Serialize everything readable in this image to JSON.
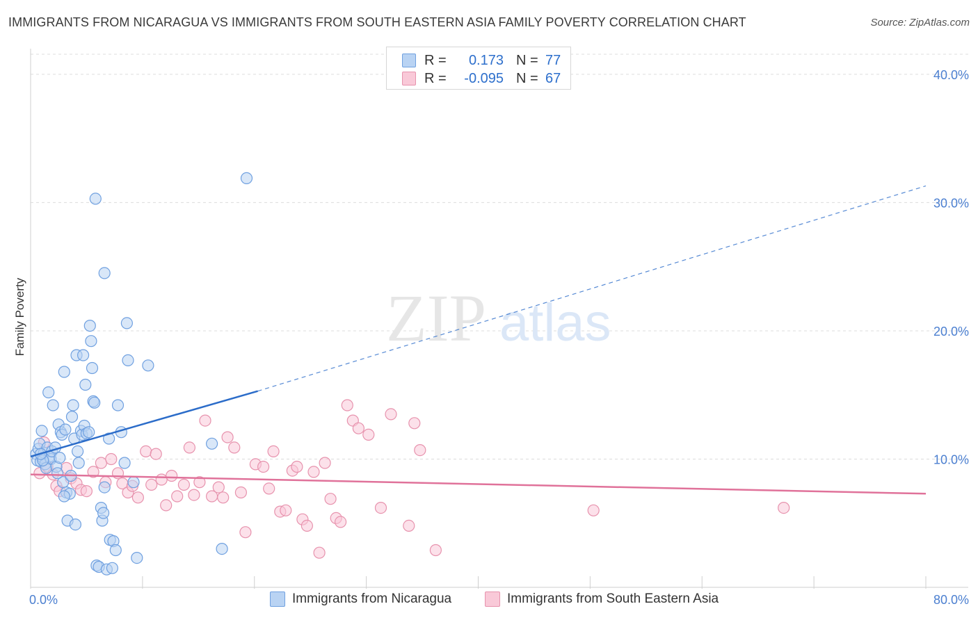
{
  "header": {
    "title": "IMMIGRANTS FROM NICARAGUA VS IMMIGRANTS FROM SOUTH EASTERN ASIA FAMILY POVERTY CORRELATION CHART",
    "source": "Source: ZipAtlas.com"
  },
  "watermark": {
    "zip": "ZIP",
    "atlas": "atlas"
  },
  "colors": {
    "blue_fill": "#b9d3f3",
    "blue_stroke": "#6fa0e0",
    "blue_line": "#2b6cc9",
    "pink_fill": "#f9c9d8",
    "pink_stroke": "#e792ad",
    "pink_line": "#e0729a",
    "grid": "#dcdcdc",
    "tick_text": "#4b7fd0"
  },
  "legend": {
    "r_label": "R =",
    "n_label": "N =",
    "rows": [
      {
        "name": "blue",
        "r": "0.173",
        "n": "77"
      },
      {
        "name": "pink",
        "r": "-0.095",
        "n": "67"
      }
    ]
  },
  "chart_data": {
    "type": "scatter",
    "title": "IMMIGRANTS FROM NICARAGUA VS IMMIGRANTS FROM SOUTH EASTERN ASIA FAMILY POVERTY CORRELATION CHART",
    "xlabel": "",
    "ylabel": "Family Poverty",
    "xlim": [
      0,
      80
    ],
    "ylim": [
      0,
      42
    ],
    "x_tick_labels": [
      "0.0%",
      "80.0%"
    ],
    "y_ticks": [
      10,
      20,
      30,
      40
    ],
    "y_tick_labels": [
      "10.0%",
      "20.0%",
      "30.0%",
      "40.0%"
    ],
    "grid": true,
    "legend_position": "top-center",
    "series": [
      {
        "name": "Immigrants from Nicaragua",
        "color": "#6fa0e0",
        "r": 0.173,
        "n": 77,
        "trend": {
          "x": [
            0,
            20.3
          ],
          "y": [
            10.2,
            15.3
          ],
          "dashed_to": [
            80,
            31.3
          ]
        },
        "points": [
          [
            0.5,
            10.4
          ],
          [
            0.6,
            9.9
          ],
          [
            0.7,
            10.8
          ],
          [
            0.8,
            11.2
          ],
          [
            0.9,
            9.8
          ],
          [
            1.0,
            12.2
          ],
          [
            1.1,
            10.1
          ],
          [
            1.2,
            10.5
          ],
          [
            1.3,
            9.6
          ],
          [
            1.5,
            10.9
          ],
          [
            1.7,
            10.2
          ],
          [
            1.8,
            10.0
          ],
          [
            1.4,
            9.3
          ],
          [
            1.6,
            15.2
          ],
          [
            1.9,
            10.6
          ],
          [
            2.0,
            14.2
          ],
          [
            2.2,
            10.9
          ],
          [
            2.3,
            9.4
          ],
          [
            2.5,
            12.7
          ],
          [
            2.6,
            10.1
          ],
          [
            2.7,
            12.1
          ],
          [
            2.8,
            11.9
          ],
          [
            2.9,
            8.2
          ],
          [
            3.0,
            16.8
          ],
          [
            3.1,
            12.3
          ],
          [
            3.2,
            7.4
          ],
          [
            3.3,
            5.2
          ],
          [
            3.5,
            7.3
          ],
          [
            3.6,
            8.7
          ],
          [
            3.7,
            13.3
          ],
          [
            3.8,
            14.2
          ],
          [
            3.9,
            11.6
          ],
          [
            4.0,
            4.9
          ],
          [
            4.1,
            18.1
          ],
          [
            4.2,
            10.6
          ],
          [
            4.3,
            9.7
          ],
          [
            4.5,
            12.2
          ],
          [
            4.6,
            11.9
          ],
          [
            4.7,
            18.1
          ],
          [
            4.8,
            12.6
          ],
          [
            4.9,
            15.8
          ],
          [
            5.0,
            12.0
          ],
          [
            5.2,
            12.1
          ],
          [
            5.3,
            20.4
          ],
          [
            5.4,
            19.2
          ],
          [
            5.5,
            17.1
          ],
          [
            5.6,
            14.5
          ],
          [
            5.7,
            14.4
          ],
          [
            5.8,
            30.3
          ],
          [
            5.9,
            1.7
          ],
          [
            6.1,
            1.6
          ],
          [
            6.3,
            6.2
          ],
          [
            6.4,
            5.2
          ],
          [
            6.5,
            5.8
          ],
          [
            6.6,
            7.8
          ],
          [
            6.8,
            1.4
          ],
          [
            7.0,
            11.6
          ],
          [
            7.1,
            3.7
          ],
          [
            7.3,
            1.5
          ],
          [
            7.4,
            3.6
          ],
          [
            7.6,
            2.9
          ],
          [
            7.8,
            14.2
          ],
          [
            8.1,
            12.1
          ],
          [
            8.4,
            9.7
          ],
          [
            8.6,
            20.6
          ],
          [
            8.7,
            17.7
          ],
          [
            9.2,
            8.2
          ],
          [
            9.5,
            2.3
          ],
          [
            10.5,
            17.3
          ],
          [
            16.2,
            11.2
          ],
          [
            17.1,
            3.0
          ],
          [
            19.3,
            31.9
          ],
          [
            6.6,
            24.5
          ],
          [
            3.0,
            7.1
          ],
          [
            2.4,
            8.9
          ],
          [
            1.1,
            9.9
          ],
          [
            0.9,
            10.4
          ]
        ]
      },
      {
        "name": "Immigrants from South Eastern Asia",
        "color": "#e792ad",
        "r": -0.095,
        "n": 67,
        "trend": {
          "x": [
            0,
            80
          ],
          "y": [
            8.8,
            7.3
          ]
        },
        "points": [
          [
            0.8,
            8.9
          ],
          [
            1.2,
            11.3
          ],
          [
            1.5,
            9.4
          ],
          [
            2.0,
            8.8
          ],
          [
            2.3,
            7.9
          ],
          [
            2.6,
            7.5
          ],
          [
            3.2,
            9.3
          ],
          [
            3.6,
            8.5
          ],
          [
            4.1,
            8.1
          ],
          [
            4.5,
            7.6
          ],
          [
            5.0,
            7.5
          ],
          [
            5.6,
            9.0
          ],
          [
            6.3,
            9.7
          ],
          [
            6.7,
            8.2
          ],
          [
            7.2,
            10.0
          ],
          [
            7.8,
            8.9
          ],
          [
            8.2,
            8.1
          ],
          [
            8.7,
            7.4
          ],
          [
            9.1,
            7.9
          ],
          [
            9.6,
            7.0
          ],
          [
            10.3,
            10.6
          ],
          [
            10.8,
            8.0
          ],
          [
            11.2,
            10.4
          ],
          [
            11.7,
            8.4
          ],
          [
            12.1,
            6.4
          ],
          [
            12.6,
            8.7
          ],
          [
            13.1,
            7.1
          ],
          [
            13.7,
            8.0
          ],
          [
            14.2,
            10.9
          ],
          [
            14.6,
            7.2
          ],
          [
            15.1,
            8.2
          ],
          [
            15.6,
            13.0
          ],
          [
            16.2,
            7.1
          ],
          [
            16.8,
            7.8
          ],
          [
            17.2,
            7.0
          ],
          [
            17.6,
            11.7
          ],
          [
            18.2,
            10.9
          ],
          [
            18.8,
            7.4
          ],
          [
            19.2,
            4.3
          ],
          [
            20.1,
            9.6
          ],
          [
            20.8,
            9.4
          ],
          [
            21.3,
            7.7
          ],
          [
            21.7,
            10.6
          ],
          [
            22.3,
            5.9
          ],
          [
            22.8,
            6.0
          ],
          [
            23.4,
            9.1
          ],
          [
            23.8,
            9.4
          ],
          [
            24.3,
            5.3
          ],
          [
            24.7,
            4.8
          ],
          [
            25.3,
            9.0
          ],
          [
            25.8,
            2.7
          ],
          [
            26.3,
            9.7
          ],
          [
            26.8,
            6.9
          ],
          [
            27.3,
            5.4
          ],
          [
            27.7,
            5.1
          ],
          [
            28.3,
            14.2
          ],
          [
            28.8,
            13.0
          ],
          [
            29.3,
            12.4
          ],
          [
            30.2,
            11.9
          ],
          [
            31.3,
            6.2
          ],
          [
            32.2,
            13.5
          ],
          [
            33.8,
            4.8
          ],
          [
            34.3,
            12.8
          ],
          [
            34.8,
            10.7
          ],
          [
            36.2,
            2.9
          ],
          [
            50.3,
            6.0
          ],
          [
            67.3,
            6.2
          ]
        ]
      }
    ]
  },
  "bottom_legend": [
    {
      "label": "Immigrants from Nicaragua",
      "color": "blue"
    },
    {
      "label": "Immigrants from South Eastern Asia",
      "color": "pink"
    }
  ]
}
